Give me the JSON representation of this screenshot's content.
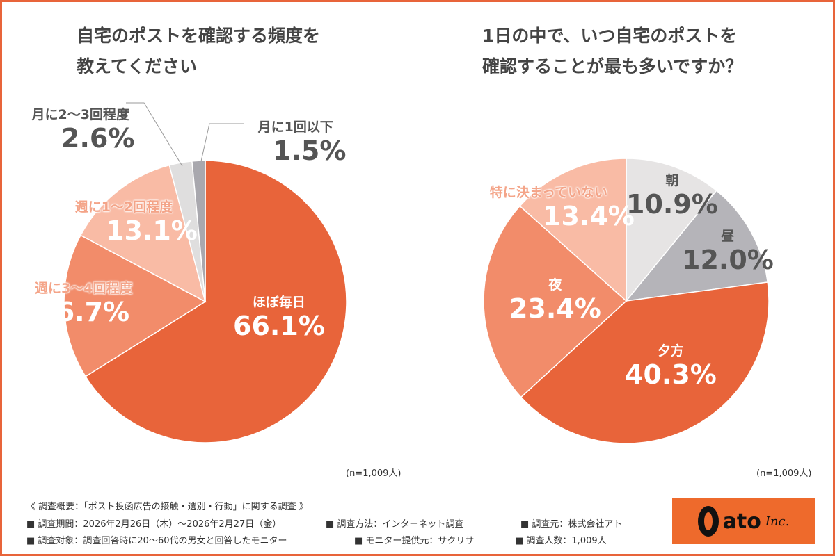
{
  "chart_data": [
    {
      "type": "pie",
      "title": "自宅のポストを確認する頻度を教えてください",
      "note": "(n=1,009人)",
      "slices": [
        {
          "label": "ほぼ毎日",
          "value": 66.1,
          "display": "66.1%",
          "color": "#E8643A"
        },
        {
          "label": "週に3〜4回程度",
          "value": 16.7,
          "display": "16.7%",
          "color": "#F28C6A"
        },
        {
          "label": "週に1〜2回程度",
          "value": 13.1,
          "display": "13.1%",
          "color": "#F9BBA5"
        },
        {
          "label": "月に2〜3回程度",
          "value": 2.6,
          "display": "2.6%",
          "color": "#DFDEDE"
        },
        {
          "label": "月に1回以下",
          "value": 1.5,
          "display": "1.5%",
          "color": "#A9A8AE"
        }
      ]
    },
    {
      "type": "pie",
      "title": "1日の中で、いつ自宅のポストを確認することが最も多いですか？",
      "note": "(n=1,009人)",
      "slices": [
        {
          "label": "朝",
          "value": 10.9,
          "display": "10.9%",
          "color": "#E6E4E4"
        },
        {
          "label": "昼",
          "value": 12.0,
          "display": "12.0%",
          "color": "#B5B4B9"
        },
        {
          "label": "夕方",
          "value": 40.3,
          "display": "40.3%",
          "color": "#E8643A"
        },
        {
          "label": "夜",
          "value": 23.4,
          "display": "23.4%",
          "color": "#F28C6A"
        },
        {
          "label": "特に決まっていない",
          "value": 13.4,
          "display": "13.4%",
          "color": "#F9BBA5"
        }
      ]
    }
  ],
  "titles": [
    [
      "自宅のポストを確認する頻度を",
      "教えてください"
    ],
    [
      "1日の中で、いつ自宅のポストを",
      "確認することが最も多いですか？"
    ]
  ],
  "footer": {
    "summary": "《 調査概要：「ポスト投函広告の接触・選別・行動」に関する調査 》",
    "items": [
      "■ 調査期間：2026年2月26日（木）〜2026年2月27日（金）",
      "■ 調査方法：インターネット調査",
      "■ 調査元：株式会社アト",
      "■ 調査対象：調査回答時に20〜60代の男女と回答したモニター",
      "■ モニター提供元：サクリサ",
      "■ 調査人数：1,009人"
    ]
  },
  "logo": {
    "text": "ato",
    "suffix": "Inc."
  }
}
